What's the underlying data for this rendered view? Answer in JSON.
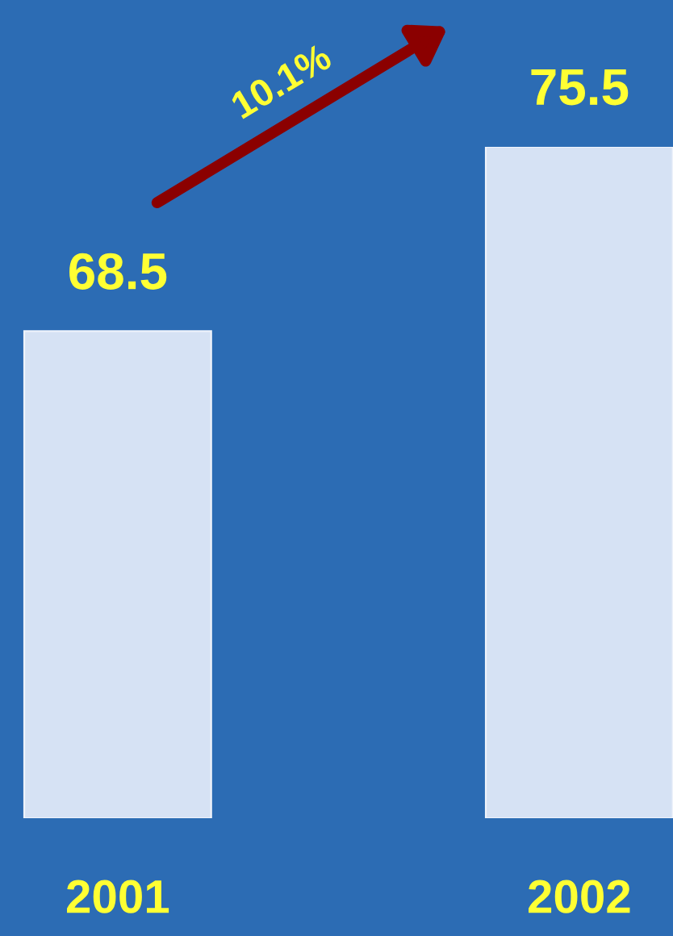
{
  "chart_data": {
    "type": "bar",
    "categories": [
      "2001",
      "2002"
    ],
    "values": [
      68.5,
      75.5
    ],
    "color": "#d6e2f4",
    "ylim": [
      50,
      75.5
    ],
    "data_labels": true,
    "tick_labels": "x",
    "annotations": [
      "10.1%"
    ]
  }
}
